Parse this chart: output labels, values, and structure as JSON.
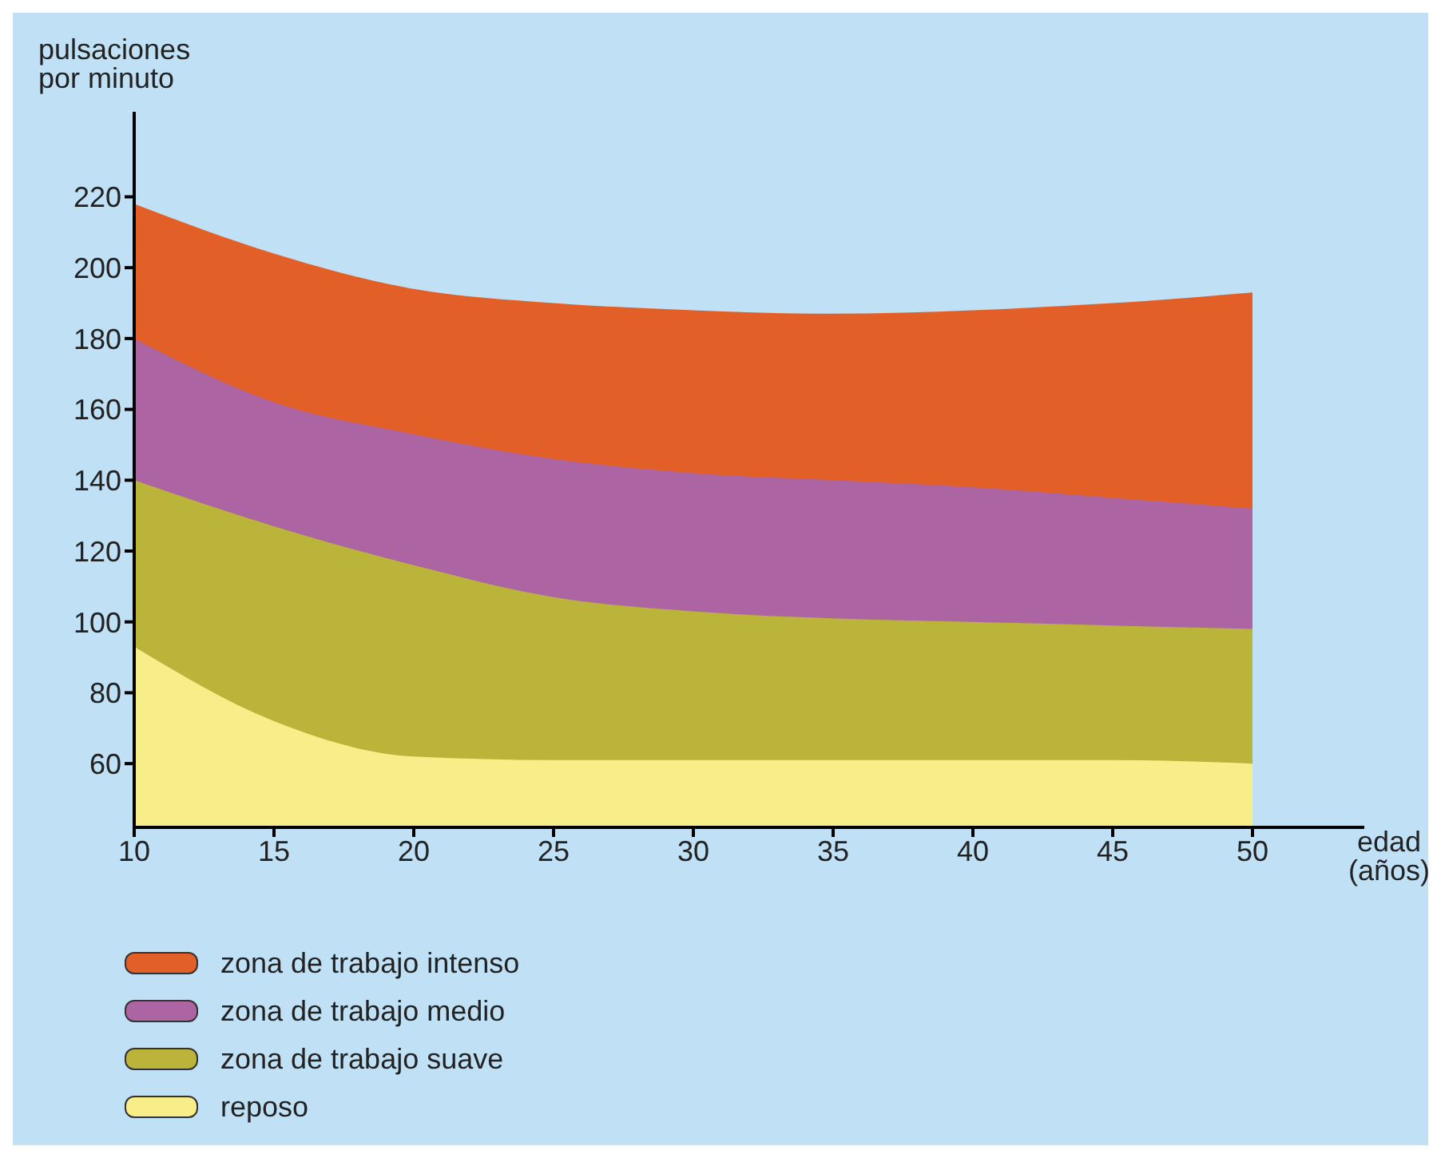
{
  "chart_data": {
    "type": "area",
    "ylabel": "pulsaciones\npor minuto",
    "xlabel": "edad\n(años)",
    "x": [
      10,
      15,
      20,
      25,
      30,
      35,
      40,
      45,
      50
    ],
    "series": [
      {
        "name": "zona de trabajo intenso",
        "color": "#e35f28",
        "values": [
          218,
          204,
          194,
          190,
          188,
          187,
          188,
          190,
          193
        ]
      },
      {
        "name": "zona de trabajo medio",
        "color": "#ad64a2",
        "values": [
          180,
          162,
          153,
          146,
          142,
          140,
          138,
          135,
          132
        ]
      },
      {
        "name": "zona de trabajo suave",
        "color": "#bab43a",
        "values": [
          140,
          127,
          116,
          107,
          103,
          101,
          100,
          99,
          98
        ]
      },
      {
        "name": "reposo",
        "color": "#f7ee8a",
        "values": [
          93,
          72,
          62,
          61,
          61,
          61,
          61,
          61,
          60
        ]
      }
    ],
    "xlim": [
      10,
      54
    ],
    "xticks": [
      10,
      15,
      20,
      25,
      30,
      35,
      40,
      45,
      50
    ],
    "ylim": [
      42,
      244
    ],
    "yticks": [
      60,
      80,
      100,
      120,
      140,
      160,
      180,
      200,
      220
    ],
    "legend": "bottom"
  }
}
